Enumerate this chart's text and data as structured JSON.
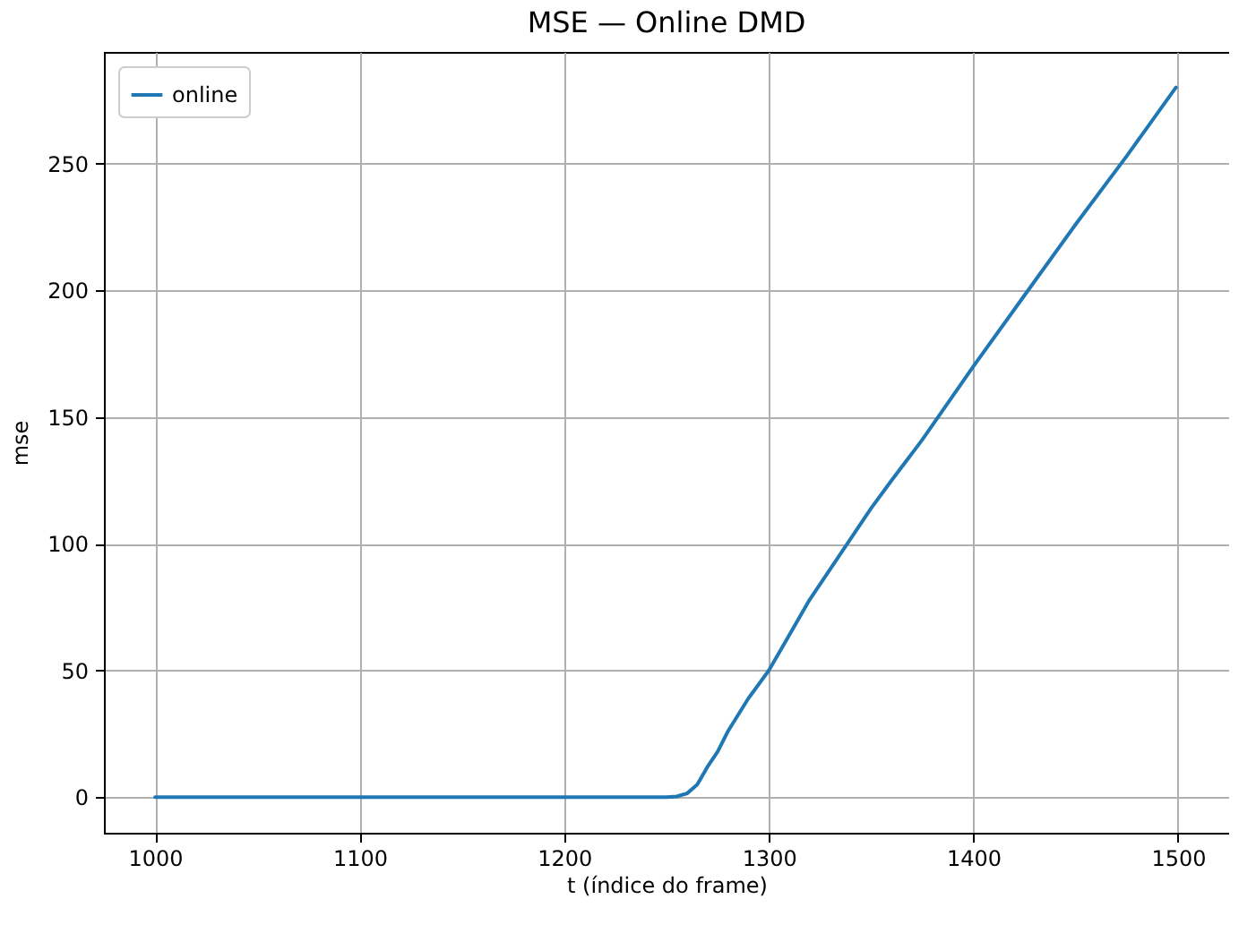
{
  "chart_data": {
    "type": "line",
    "title": "MSE — Online DMD",
    "xlabel": "t (índice do frame)",
    "ylabel": "mse",
    "x": [
      1000,
      1250,
      1255,
      1260,
      1265,
      1270,
      1275,
      1280,
      1290,
      1300,
      1310,
      1320,
      1330,
      1340,
      1350,
      1360,
      1375,
      1400,
      1425,
      1450,
      1475,
      1499
    ],
    "series": [
      {
        "name": "online",
        "color": "#1f77b4",
        "values": [
          0,
          0,
          0.3,
          1.5,
          5,
          12,
          18,
          26,
          39,
          50,
          64,
          78,
          90,
          102,
          114,
          125,
          141,
          170,
          198,
          226,
          253,
          280
        ]
      }
    ],
    "xlim": [
      975,
      1525
    ],
    "xticks": [
      1000,
      1100,
      1200,
      1300,
      1400,
      1500
    ],
    "ylim": [
      -14,
      294
    ],
    "yticks": [
      0,
      50,
      100,
      150,
      200,
      250
    ],
    "grid": true,
    "legend": "top left",
    "marker": "none",
    "line_style": "solid"
  }
}
